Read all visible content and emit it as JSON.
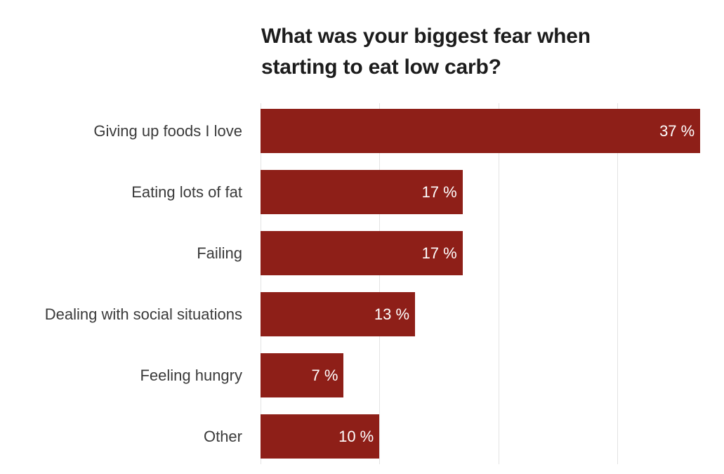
{
  "chart": {
    "title_lines": [
      "What was your biggest fear when",
      "starting to eat low carb?"
    ]
  },
  "chart_data": {
    "type": "bar",
    "orientation": "horizontal",
    "title": "What was your biggest fear when starting to eat low carb?",
    "categories": [
      "Giving up foods I love",
      "Eating lots of fat",
      "Failing",
      "Dealing with social situations",
      "Feeling hungry",
      "Other"
    ],
    "values": [
      37,
      17,
      17,
      13,
      7,
      10
    ],
    "value_labels": [
      "37 %",
      "17 %",
      "17 %",
      "13 %",
      "7 %",
      "10 %"
    ],
    "unit": "%",
    "xlim": [
      0,
      40
    ],
    "gridline_interval": 10,
    "grid": "vertical-only",
    "legend": "none",
    "colors": {
      "bar": "#8e1f18",
      "value_label": "#ffffff",
      "category_label": "#3a3a3a",
      "title": "#1c1c1c",
      "gridline": "#e3e3e3",
      "background": "#ffffff"
    }
  }
}
